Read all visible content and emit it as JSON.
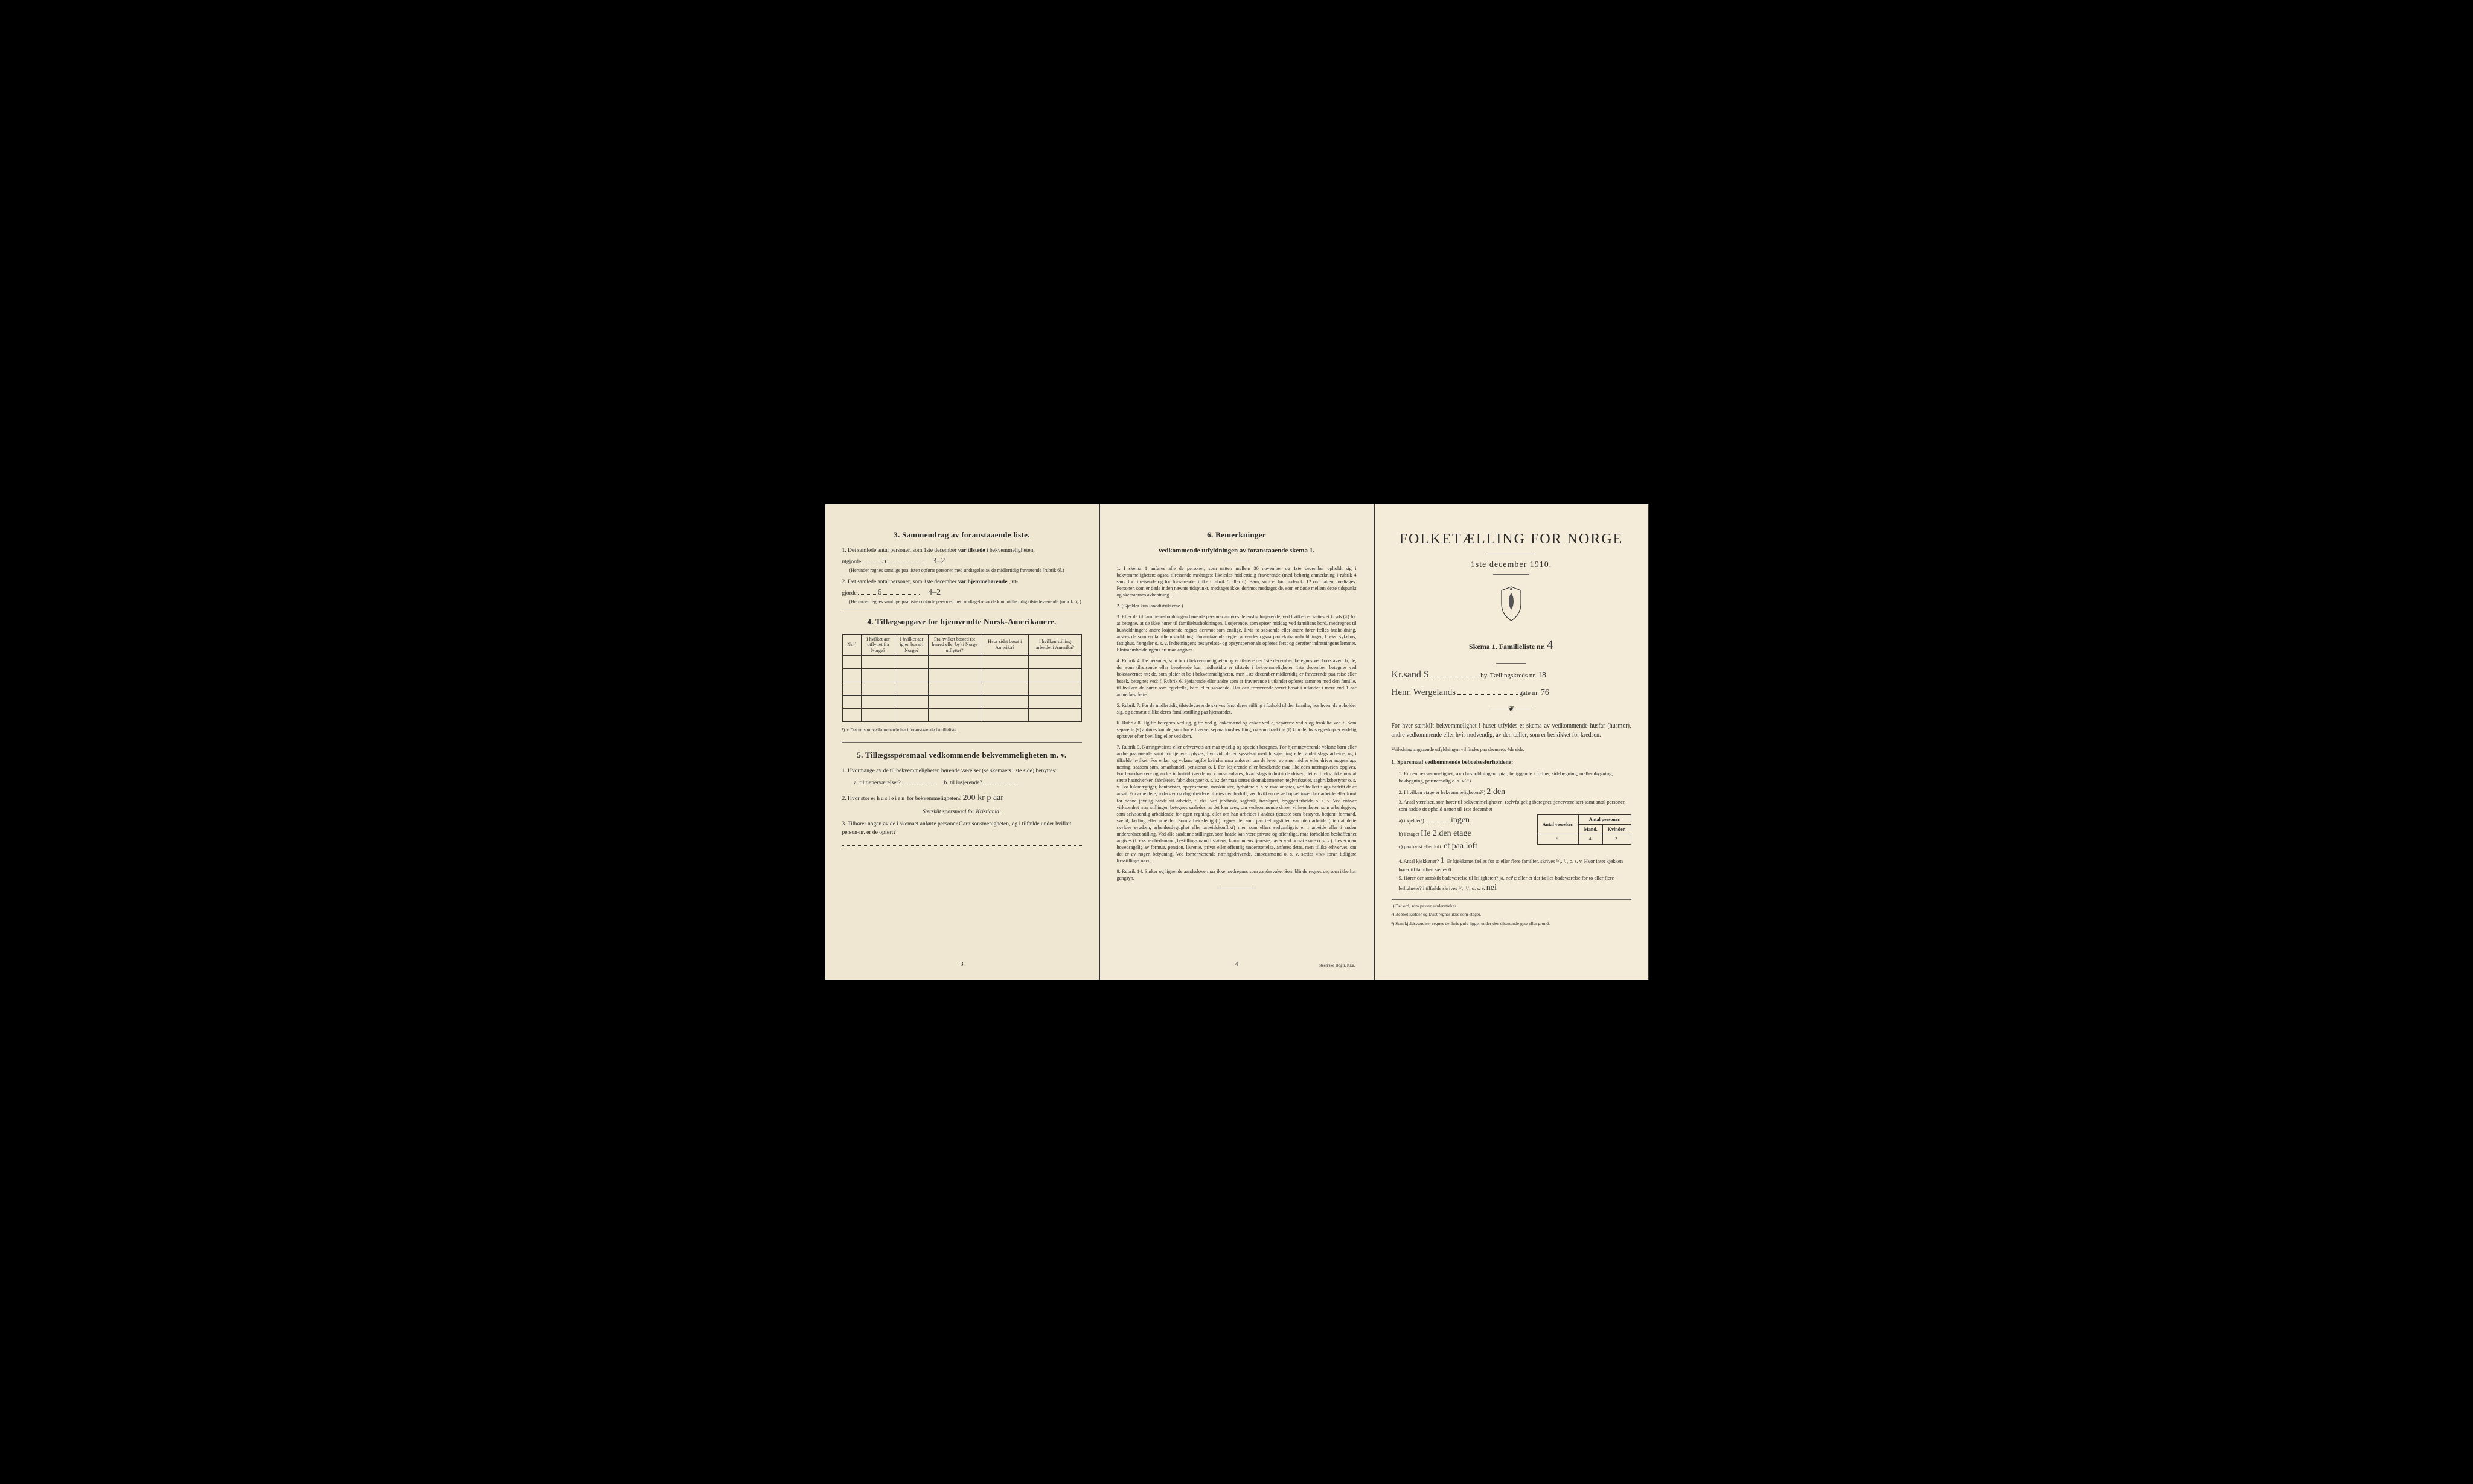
{
  "page1": {
    "section3": {
      "title": "3.   Sammendrag av foranstaaende liste.",
      "item1_prefix": "1.  Det samlede antal personer, som 1ste december",
      "item1_bold": "var tilstede",
      "item1_suffix": "i bekvemmeligheten,",
      "item1_line2": "utgjorde",
      "item1_value": "5",
      "item1_annotation": "3–2",
      "item1_note": "(Herunder regnes samtlige paa listen opførte personer med undtagelse av de midlertidig fraværende [rubrik 6].)",
      "item2_prefix": "2.  Det samlede antal personer, som 1ste december",
      "item2_bold": "var hjemmehørende",
      "item2_suffix": ", ut-",
      "item2_line2": "gjorde",
      "item2_value": "6",
      "item2_annotation": "4–2",
      "item2_note": "(Herunder regnes samtlige paa listen opførte personer med undtagelse av de kun midlertidig tilstedeværende [rubrik 5].)"
    },
    "section4": {
      "title": "4.   Tillægsopgave for hjemvendte Norsk-Amerikanere.",
      "headers": {
        "col1": "Nr.¹)",
        "col2": "I hvilket aar utflyttet fra Norge?",
        "col3": "I hvilket aar igjen bosat i Norge?",
        "col4": "Fra hvilket bosted (ɔ: herred eller by) i Norge utflyttet?",
        "col5": "Hvor sidst bosat i Amerika?",
        "col6": "I hvilken stilling arbeidet i Amerika?"
      },
      "footnote": "¹) ɔ: Det nr. som vedkommende har i foranstaaende familieliste."
    },
    "section5": {
      "title": "5.   Tillægsspørsmaal vedkommende bekvemmeligheten m. v.",
      "q1": "1.  Hvormange av de til bekvemmeligheten hørende værelser (se skemaets 1ste side) benyttes:",
      "q1a": "a.  til tjenerværelser?",
      "q1b": "b.  til losjerende?",
      "q2_prefix": "2.  Hvor stor er",
      "q2_bold": "husleien",
      "q2_suffix": "for bekvemmeligheten?",
      "q2_value": "200 kr p aar",
      "q3_heading": "Særskilt spørsmaal for Kristiania:",
      "q3": "3.  Tilhører nogen av de i skemaet anførte personer Garnisonsmenigheten, og i tilfælde under hvilket person-nr. er de opført?"
    },
    "page_num": "3"
  },
  "page2": {
    "section6": {
      "title": "6.   Bemerkninger",
      "subtitle": "vedkommende utfyldningen av foranstaaende skema 1.",
      "items": [
        "1.  I skema 1 anføres alle de personer, som natten mellem 30 november og 1ste december opholdt sig i bekvemmeligheten; ogsaa tilreisende medtages; likeledes midlertidig fraværende (med behørig anmerkning i rubrik 4 samt for tilreisende og for fraværende tillike i rubrik 5 eller 6). Barn, som er født inden kl 12 om natten, medtages. Personer, som er døde inden nævnte tidspunkt, medtages ikke; derimot medtages de, som er døde mellem dette tidspunkt og skemaernes avhentning.",
        "2.  (Gjælder kun landdistrikterne.)",
        "3.  Efter de til familiehusholdningen hørende personer anføres de enslig losjerende, ved hvilke der sættes et kryds (×) for at betegne, at de ikke hører til familiehusholdningen. Losjerende, som spiser middag ved familiens bord, medregnes til husholdningen; andre losjerende regnes derimot som enslige. Hvis to søskende eller andre fører fælles husholdning, ansees de som en familiehusholdning.\n    Foranstaaende regler anvendes ogsaa paa ekstrahusholdninger, f. eks. sykehus, fattighus, fængsler o. s. v. Indretningens bestyrelses- og opsynspersonale opføres først og derefter indretningens lemmer. Ekstrahusholdningens art maa angives.",
        "4.  Rubrik 4. De personer, som bor i bekvemmeligheten og er tilstede der 1ste december, betegnes ved bokstaven: b; de, der som tilreisende eller besøkende kun midlertidig er tilstede i bekvemmeligheten 1ste december, betegnes ved bokstaverne: mt; de, som pleier at bo i bekvemmeligheten, men 1ste december midlertidig er fraværende paa reise eller besøk, betegnes ved: f.\n    Rubrik 6. Sjøfarende eller andre som er fraværende i utlandet opføres sammen med den familie, til hvilken de hører som egtefælle, barn eller søskende.\n    Har den fraværende været bosat i utlandet i mere end 1 aar anmerkes dette.",
        "5.  Rubrik 7. For de midlertidig tilstedeværende skrives først deres stilling i forhold til den familie, hos hvem de opholder sig, og dernæst tillike deres familiestilling paa hjemstedet.",
        "6.  Rubrik 8. Ugifte betegnes ved ug, gifte ved g, enkemænd og enker ved e, separerte ved s og fraskilte ved f. Som separerte (s) anføres kun de, som har erhvervet separationsbevilling, og som fraskilte (f) kun de, hvis egteskap er endelig ophævet efter bevilling eller ved dom.",
        "7.  Rubrik 9. Næringsveiens eller erhvervets art maa tydelig og specielt betegnes.\n    For hjemmeværende voksne barn eller andre paarørende samt for tjenere oplyses, hvorvidt de er sysselsat med husgjerning eller andet slags arbeide, og i tilfælde hvilket. For enker og voksne ugifte kvinder maa anføres, om de lever av sine midler eller driver nogenslags næring, saasom søm, smaahandel, pensionat o. l.\n    For losjerende eller besøkende maa likeledes næringsveien opgives.\n    For haandverkere og andre industridrivende m. v. maa anføres, hvad slags industri de driver; det er f. eks. ikke nok at sætte haandverker, fabrikeier, fabrikbestyrer o. s. v.; der maa sættes skomakermester, teglverkseier, sagbruksbestyrer o. s. v.\n    For fuldmægtiger, kontorister, opsynsmænd, maskinister, fyrbøtere o. s. v. maa anføres, ved hvilket slags bedrift de er ansat.\n    For arbeidere, inderster og dagarbeidere tilføies den bedrift, ved hvilken de ved optællingen har arbeide eller forut for denne jevnlig hadde sit arbeide, f. eks. ved jordbruk, sagbruk, træsliperi, bryggeriarbeide o. s. v.\n    Ved enhver virksomhet maa stillingen betegnes saaledes, at det kan sees, om vedkommende driver virksomheten som arbeidsgiver, som selvstændig arbeidende for egen regning, eller om han arbeider i andres tjeneste som bestyrer, betjent, formand, svend, lærling eller arbeider.\n    Som arbeidsledig (l) regnes de, som paa tællingstiden var uten arbeide (uten at dette skyldes sygdom, arbeidsudygtighet eller arbeidskonflikt) men som ellers sedvanligvis er i arbeide eller i anden underordnet stilling.\n    Ved alle saadanne stillinger, som baade kan være private og offentlige, maa forholdets beskaffenhet angives (f. eks. embedsmand, bestillingsmand i statens, kommunens tjeneste, lærer ved privat skole o. s. v.).\n    Lever man hovedsagelig av formue, pension, livrente, privat eller offentlig understøttelse, anføres dette, men tillike erhvervet, om det er av nogen betydning.\n    Ved forhenværende næringsdrivende, embedsmænd o. s. v. sættes «fv» foran tidligere livsstillings navn.",
        "8.  Rubrik 14. Sinker og lignende aandssløve maa ikke medregnes som aandssvake.\n    Som blinde regnes de, som ikke har gangsyn."
      ]
    },
    "page_num": "4",
    "printer": "Steen'ske Bogtr.  Kr.a."
  },
  "page3": {
    "title": "FOLKETÆLLING FOR NORGE",
    "date": "1ste december 1910.",
    "skema": "Skema 1.   Familieliste nr.",
    "skema_value": "4",
    "city_label": "by.  Tællingskreds nr.",
    "city_value": "Kr.sand S",
    "kreds_value": "18",
    "gate_label": "gate nr.",
    "gate_name": "Henr. Wergelands",
    "gate_value": "76",
    "body1": "For hver særskilt bekvemmelighet i huset utfyldes et skema av vedkommende husfar (husmor), andre vedkommende eller hvis nødvendig, av den tæller, som er beskikket for kredsen.",
    "body2": "Veiledning angaaende utfyldningen vil findes paa skemaets 4de side.",
    "q1_title": "1. Spørsmaal vedkommende beboelsesforholdene:",
    "q1_1": "1.  Er den bekvemmelighet, som husholdningen optar, beliggende i forhus, sidebygning, mellembygning, bakbygning, portnerbolig o. s. v.?¹)",
    "q1_2": "2.  I hvilken etage er bekvemmeligheten?²)",
    "q1_2_value": "2 den",
    "q1_3": "3.  Antal værelser, som hører til bekvemmeligheten, (selvfølgelig iberegnet tjenerværelser) samt antal personer, som hadde sit ophold natten til 1ste december",
    "table_headers": {
      "h1": "Antal værelser.",
      "h2": "Antal personer.",
      "h2a": "Mand.",
      "h2b": "Kvinder."
    },
    "q1_3a": "a) i kjelder³)",
    "q1_3a_value": "ingen",
    "q1_3b": "b) i etager",
    "q1_3b_value": "He 2.den etage",
    "q1_3c": "c) paa kvist eller loft.",
    "q1_3c_value": "et paa loft",
    "row_values": {
      "vaerelser": "5.",
      "mand": "4.",
      "kvinder": "2."
    },
    "q1_4": "4.  Antal kjøkkener?",
    "q1_4_value": "1",
    "q1_4_suffix": "Er kjøkkenet fælles for to eller flere familier, skrives ¹/₂, ¹/₃ o. s. v.  Hvor intet kjøkken hører til familien sættes 0.",
    "q1_5": "5.  Hører der særskilt badeværelse til leiligheten?  ja, nei¹); eller er der fælles badeværelse for to eller flere leiligheter? i tilfælde skrives ¹/₂, ¹/₃ o. s. v.",
    "q1_5_value": "nei",
    "footnotes": [
      "¹) Det ord, som passer, understrekes.",
      "²) Beboet kjelder og kvist regnes ikke som etager.",
      "³) Som kjeldsværelser regnes de, hvis gulv ligger under den tilstøtende gate eller grund."
    ]
  }
}
